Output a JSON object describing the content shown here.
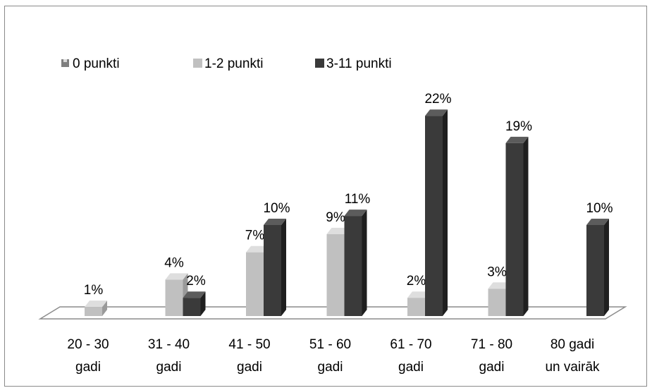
{
  "chart_data": {
    "type": "bar",
    "title": "",
    "xlabel": "",
    "ylabel": "",
    "ylim": [
      0,
      24
    ],
    "grid": false,
    "legend_position": "top-left",
    "categories": [
      [
        "20 - 30",
        "gadi"
      ],
      [
        "31 - 40",
        "gadi"
      ],
      [
        "41 - 50",
        "gadi"
      ],
      [
        "51 - 60",
        "gadi"
      ],
      [
        "61 - 70",
        "gadi"
      ],
      [
        "71 - 80",
        "gadi"
      ],
      [
        "80 gadi",
        "un vairāk"
      ]
    ],
    "series": [
      {
        "name": "0 punkti",
        "values": [
          0,
          0,
          0,
          0,
          0,
          0,
          0
        ],
        "labels": [
          "",
          "",
          "",
          "",
          "",
          "",
          ""
        ],
        "color": "#7f7f7f",
        "side": "#595959",
        "top": "#a6a6a6"
      },
      {
        "name": "1-2 punkti",
        "values": [
          1,
          4,
          7,
          9,
          2,
          3,
          0
        ],
        "labels": [
          "1%",
          "4%",
          "7%",
          "9%",
          "2%",
          "3%",
          ""
        ],
        "color": "#c0c0c0",
        "side": "#9a9a9a",
        "top": "#dedede"
      },
      {
        "name": "3-11 punkti",
        "values": [
          0,
          2,
          10,
          11,
          22,
          19,
          10
        ],
        "labels": [
          "",
          "2%",
          "10%",
          "11%",
          "22%",
          "19%",
          "10%"
        ],
        "color": "#3a3a3a",
        "side": "#1f1f1f",
        "top": "#5c5c5c"
      }
    ]
  }
}
